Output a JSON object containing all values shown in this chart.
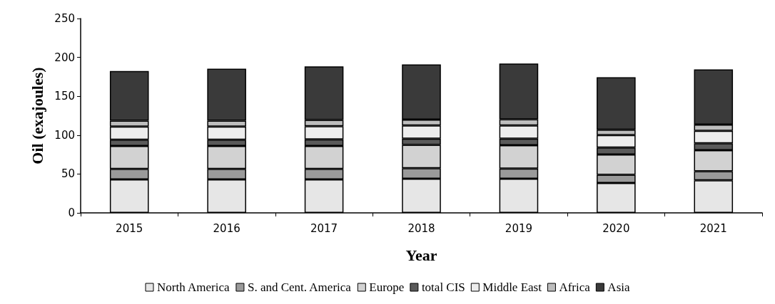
{
  "chart_data": {
    "type": "bar",
    "stacked": true,
    "xlabel": "Year",
    "ylabel": "Oil (exajoules)",
    "categories": [
      "2015",
      "2016",
      "2017",
      "2018",
      "2019",
      "2020",
      "2021"
    ],
    "ylim": [
      0,
      250
    ],
    "yticks": [
      0,
      50,
      100,
      150,
      200,
      250
    ],
    "grid": false,
    "legend": "bottom",
    "series": [
      {
        "name": "North America",
        "color": "#e6e6e6",
        "values": [
          43,
          43,
          43,
          44,
          44,
          38.5,
          42
        ]
      },
      {
        "name": "S. and Cent. America",
        "color": "#9a9a9a",
        "values": [
          13.5,
          13.5,
          13.5,
          13.5,
          13,
          10.5,
          11.5
        ]
      },
      {
        "name": "Europe",
        "color": "#d2d2d2",
        "values": [
          29.5,
          29.5,
          29.5,
          30,
          30,
          26,
          27
        ]
      },
      {
        "name": "total CIS",
        "color": "#5a5a5a",
        "values": [
          8,
          8,
          8.5,
          8,
          8.5,
          9,
          9
        ]
      },
      {
        "name": "Middle East",
        "color": "#ededed",
        "values": [
          17,
          17,
          17,
          17,
          17,
          16,
          16
        ]
      },
      {
        "name": "Africa",
        "color": "#bdbdbd",
        "values": [
          7.5,
          7.5,
          8,
          7.5,
          8,
          7,
          8
        ]
      },
      {
        "name": "Asia",
        "color": "#3a3a3a",
        "values": [
          64,
          67,
          69,
          71,
          71.5,
          67.5,
          71
        ]
      }
    ]
  }
}
